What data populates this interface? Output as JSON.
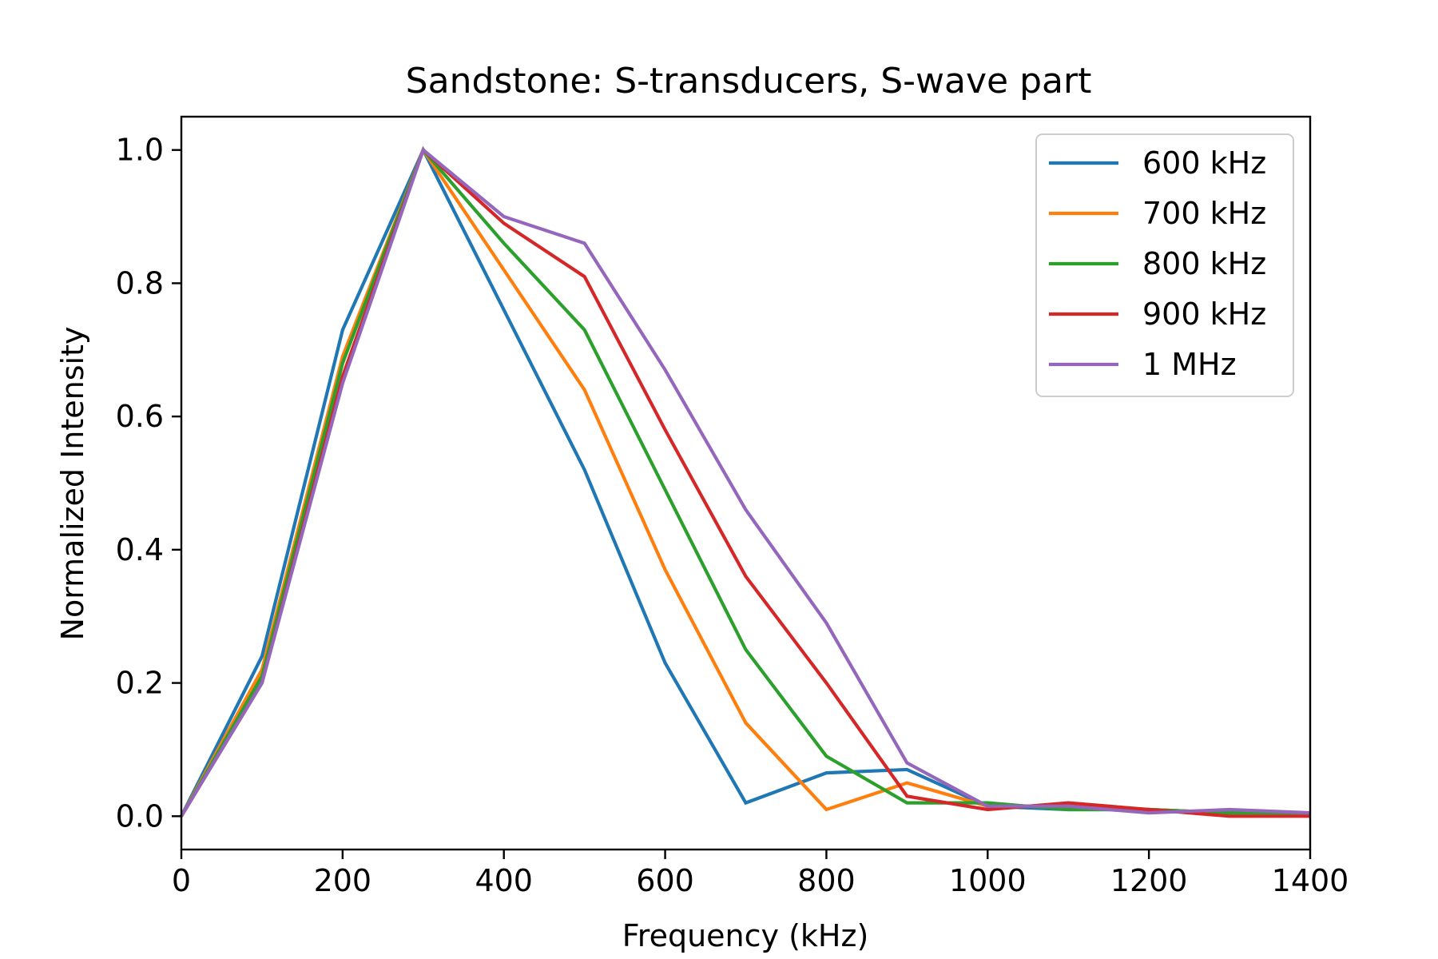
{
  "chart_data": {
    "type": "line",
    "title": "Sandstone: S-transducers, S-wave part",
    "xlabel": "Frequency (kHz)",
    "ylabel": "Normalized Intensity",
    "xlim": [
      0,
      1400
    ],
    "ylim": [
      -0.05,
      1.05
    ],
    "xticks": [
      0,
      200,
      400,
      600,
      800,
      1000,
      1200,
      1400
    ],
    "yticks": [
      0.0,
      0.2,
      0.4,
      0.6,
      0.8,
      1.0
    ],
    "xtick_labels": [
      "0",
      "200",
      "400",
      "600",
      "800",
      "1000",
      "1200",
      "1400"
    ],
    "ytick_labels": [
      "0.0",
      "0.2",
      "0.4",
      "0.6",
      "0.8",
      "1.0"
    ],
    "grid": false,
    "legend_position": "upper right",
    "x": [
      0,
      100,
      200,
      300,
      400,
      500,
      600,
      700,
      800,
      900,
      1000,
      1100,
      1200,
      1300,
      1400
    ],
    "series": [
      {
        "name": "600 kHz",
        "color": "#1f77b4",
        "values": [
          0.0,
          0.24,
          0.73,
          1.0,
          0.76,
          0.52,
          0.23,
          0.02,
          0.065,
          0.07,
          0.015,
          0.01,
          0.01,
          0.005,
          0.005
        ]
      },
      {
        "name": "700 kHz",
        "color": "#ff7f0e",
        "values": [
          0.0,
          0.22,
          0.69,
          1.0,
          0.82,
          0.64,
          0.37,
          0.14,
          0.01,
          0.05,
          0.015,
          0.015,
          0.01,
          0.005,
          0.005
        ]
      },
      {
        "name": "800 kHz",
        "color": "#2ca02c",
        "values": [
          0.0,
          0.21,
          0.68,
          1.0,
          0.86,
          0.73,
          0.49,
          0.25,
          0.09,
          0.02,
          0.02,
          0.01,
          0.01,
          0.005,
          0.005
        ]
      },
      {
        "name": "900 kHz",
        "color": "#d62728",
        "values": [
          0.0,
          0.2,
          0.66,
          1.0,
          0.89,
          0.81,
          0.58,
          0.36,
          0.2,
          0.03,
          0.01,
          0.02,
          0.01,
          0.0,
          0.0
        ]
      },
      {
        "name": "1 MHz",
        "color": "#9467bd",
        "values": [
          0.0,
          0.2,
          0.65,
          1.0,
          0.9,
          0.86,
          0.67,
          0.46,
          0.29,
          0.08,
          0.015,
          0.015,
          0.005,
          0.01,
          0.005
        ]
      }
    ]
  }
}
